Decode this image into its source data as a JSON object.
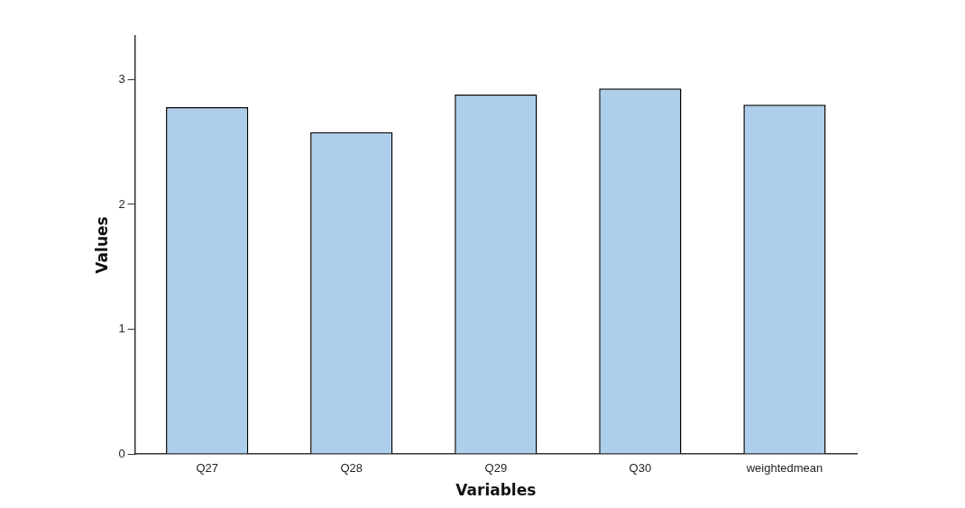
{
  "chart_data": {
    "type": "bar",
    "xlabel": "Variables",
    "ylabel": "Values",
    "categories": [
      "Q27",
      "Q28",
      "Q29",
      "Q30",
      "weightedmean"
    ],
    "values": [
      2.78,
      2.58,
      2.88,
      2.93,
      2.8
    ],
    "color": "#aecfec",
    "ylim": [
      0,
      3.35
    ],
    "yticks": [
      0,
      1,
      2,
      3
    ],
    "grid": false,
    "legend": false
  }
}
